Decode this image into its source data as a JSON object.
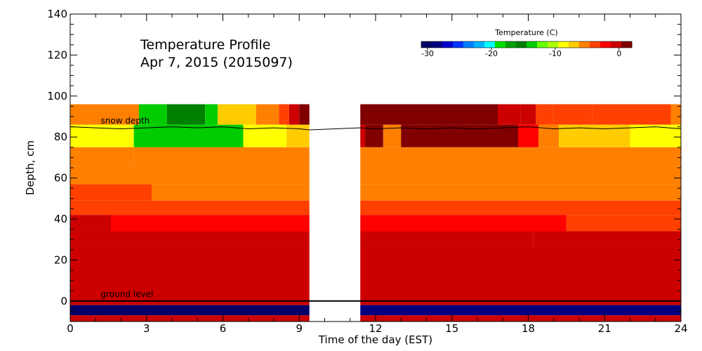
{
  "chart_data": {
    "type": "heatmap",
    "title_lines": [
      "Temperature Profile",
      "Apr  7, 2015 (2015097)"
    ],
    "xlabel": "Time of the day (EST)",
    "ylabel": "Depth, cm",
    "xlim": [
      0,
      24
    ],
    "ylim": [
      -10,
      140
    ],
    "x_ticks": [
      0,
      3,
      6,
      9,
      12,
      15,
      18,
      21,
      24
    ],
    "y_ticks": [
      0,
      20,
      40,
      60,
      80,
      100,
      120,
      140
    ],
    "grid": false,
    "data_gap": [
      9.4,
      11.4
    ],
    "colorbar": {
      "title": "Temperature (C)",
      "ticks": [
        -30,
        -20,
        -10,
        0
      ],
      "range": [
        -31,
        2
      ],
      "colors": [
        "#000066",
        "#00007f",
        "#0000cc",
        "#0033ff",
        "#0080ff",
        "#00b3ff",
        "#00ffff",
        "#00e000",
        "#00a000",
        "#008000",
        "#00cc00",
        "#66ff00",
        "#aaff00",
        "#ffff00",
        "#ffcc00",
        "#ff8000",
        "#ff4000",
        "#ff0000",
        "#cc0000",
        "#800000"
      ]
    },
    "annotations": {
      "snow_label": "snow depth",
      "ground_label": "ground level",
      "ground_level_depth": 0
    },
    "snow_depth": {
      "x": [
        0,
        1,
        2,
        3,
        4,
        5,
        6,
        7,
        8,
        9,
        9.4,
        11.4,
        12,
        13,
        14,
        15,
        16,
        17,
        18,
        19,
        20,
        21,
        22,
        23,
        24
      ],
      "y": [
        85,
        84.5,
        84,
        84.5,
        85,
        84.5,
        85,
        84,
        84.5,
        84,
        83.5,
        84.5,
        84,
        84.5,
        84,
        84.5,
        84,
        84.5,
        85,
        84,
        84.5,
        84,
        84.5,
        85,
        84
      ]
    },
    "series": [
      {
        "layer": "air 86-96 cm",
        "depth": [
          86,
          96
        ],
        "segments": [
          {
            "x": [
              0,
              2.7
            ],
            "value": -6
          },
          {
            "x": [
              2.7,
              3.8
            ],
            "value": -13
          },
          {
            "x": [
              3.8,
              5.3
            ],
            "value": -15
          },
          {
            "x": [
              5.3,
              5.8
            ],
            "value": -13
          },
          {
            "x": [
              5.8,
              7.3
            ],
            "value": -7
          },
          {
            "x": [
              7.3,
              8.2
            ],
            "value": -5
          },
          {
            "x": [
              8.2,
              8.6
            ],
            "value": -3
          },
          {
            "x": [
              8.6,
              9.0
            ],
            "value": -1
          },
          {
            "x": [
              9.0,
              9.4
            ],
            "value": 1
          },
          {
            "x": [
              11.4,
              16.8
            ],
            "value": 2
          },
          {
            "x": [
              16.8,
              17.7
            ],
            "value": 0
          },
          {
            "x": [
              17.7,
              18.3
            ],
            "value": -1
          },
          {
            "x": [
              18.3,
              19.0
            ],
            "value": -3
          },
          {
            "x": [
              19.0,
              20.5
            ],
            "value": -4
          },
          {
            "x": [
              20.5,
              23.6
            ],
            "value": -4
          },
          {
            "x": [
              23.6,
              24
            ],
            "value": -5
          }
        ]
      },
      {
        "layer": "snow 75-86 cm",
        "depth": [
          75,
          86
        ],
        "segments": [
          {
            "x": [
              0,
              2.5
            ],
            "value": -8
          },
          {
            "x": [
              2.5,
              6.8
            ],
            "value": -13
          },
          {
            "x": [
              6.8,
              8.5
            ],
            "value": -8
          },
          {
            "x": [
              8.5,
              9.4
            ],
            "value": -7
          },
          {
            "x": [
              11.4,
              11.6
            ],
            "value": -1
          },
          {
            "x": [
              11.6,
              12.3
            ],
            "value": 1
          },
          {
            "x": [
              12.3,
              13.0
            ],
            "value": -6
          },
          {
            "x": [
              13.0,
              17.6
            ],
            "value": 2
          },
          {
            "x": [
              17.6,
              18.4
            ],
            "value": -2
          },
          {
            "x": [
              18.4,
              19.2
            ],
            "value": -5
          },
          {
            "x": [
              19.2,
              22.0
            ],
            "value": -7
          },
          {
            "x": [
              22.0,
              24
            ],
            "value": -8
          }
        ]
      },
      {
        "layer": "snow 66-75 cm",
        "depth": [
          66,
          75
        ],
        "segments": [
          {
            "x": [
              0,
              2.5
            ],
            "value": -5
          },
          {
            "x": [
              2.5,
              9.4
            ],
            "value": -6
          },
          {
            "x": [
              11.4,
              13.6
            ],
            "value": -6
          },
          {
            "x": [
              13.6,
              24
            ],
            "value": -5
          }
        ]
      },
      {
        "layer": "snow 57-66 cm",
        "depth": [
          57,
          66
        ],
        "segments": [
          {
            "x": [
              0,
              9.4
            ],
            "value": -5
          },
          {
            "x": [
              11.4,
              24
            ],
            "value": -5
          }
        ]
      },
      {
        "layer": "snow 49-57 cm",
        "depth": [
          49,
          57
        ],
        "segments": [
          {
            "x": [
              0,
              3.2
            ],
            "value": -3
          },
          {
            "x": [
              3.2,
              9.4
            ],
            "value": -5
          },
          {
            "x": [
              11.4,
              24
            ],
            "value": -5
          }
        ]
      },
      {
        "layer": "snow 42-49 cm",
        "depth": [
          42,
          49
        ],
        "segments": [
          {
            "x": [
              0,
              9.4
            ],
            "value": -3
          },
          {
            "x": [
              11.4,
              24
            ],
            "value": -3
          }
        ]
      },
      {
        "layer": "snow 34-42 cm",
        "depth": [
          34,
          42
        ],
        "segments": [
          {
            "x": [
              0,
              1.6
            ],
            "value": -1
          },
          {
            "x": [
              1.6,
              9.4
            ],
            "value": -2
          },
          {
            "x": [
              11.4,
              19.5
            ],
            "value": -2
          },
          {
            "x": [
              19.5,
              24
            ],
            "value": -3
          }
        ]
      },
      {
        "layer": "snow 27-34 cm",
        "depth": [
          27,
          34
        ],
        "segments": [
          {
            "x": [
              0,
              9.4
            ],
            "value": 0
          },
          {
            "x": [
              11.4,
              18.2
            ],
            "value": 0
          },
          {
            "x": [
              18.2,
              24
            ],
            "value": -1
          }
        ]
      },
      {
        "layer": "snow 0-27 cm",
        "depth": [
          0,
          27
        ],
        "segments": [
          {
            "x": [
              0,
              9.4
            ],
            "value": 0
          },
          {
            "x": [
              11.4,
              24
            ],
            "value": 0
          }
        ]
      },
      {
        "layer": "soil 0 to -2 cm",
        "depth": [
          -2,
          0
        ],
        "segments": [
          {
            "x": [
              0,
              9.4
            ],
            "value": 0
          },
          {
            "x": [
              11.4,
              24
            ],
            "value": 0
          }
        ]
      },
      {
        "layer": "soil -2 to -7 cm",
        "depth": [
          -7,
          -2
        ],
        "segments": [
          {
            "x": [
              0,
              9.4
            ],
            "value": -30
          },
          {
            "x": [
              11.4,
              24
            ],
            "value": -29
          }
        ]
      },
      {
        "layer": "soil -7 to -10 cm",
        "depth": [
          -10,
          -7
        ],
        "segments": [
          {
            "x": [
              0,
              9.4
            ],
            "value": 0
          },
          {
            "x": [
              11.4,
              24
            ],
            "value": 0
          }
        ]
      }
    ]
  }
}
